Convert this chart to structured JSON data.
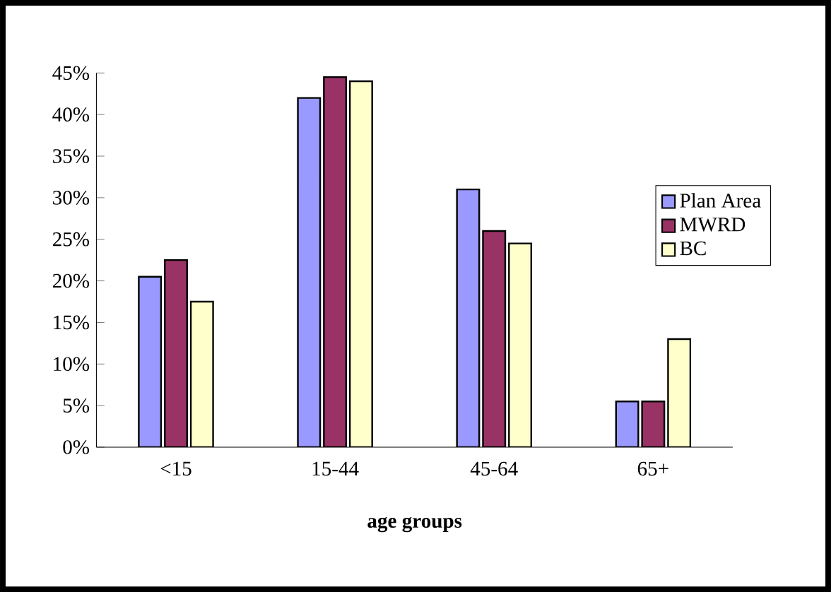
{
  "chart_data": {
    "type": "bar",
    "xlabel": "**age groups**",
    "categories": [
      "<15",
      "15-44",
      "45-64",
      "65+"
    ],
    "series": [
      {
        "name": "Plan Area",
        "color": "#9999ff",
        "values": [
          20.5,
          42,
          31,
          5.5
        ]
      },
      {
        "name": "MWRD",
        "color": "#993366",
        "values": [
          22.5,
          44.5,
          26,
          5.5
        ]
      },
      {
        "name": "BC",
        "color": "#ffffcc",
        "values": [
          17.5,
          44,
          24.5,
          13
        ]
      }
    ],
    "ylim": [
      0,
      45
    ],
    "yticks": [
      {
        "value": 0,
        "label": "0%"
      },
      {
        "value": 5,
        "label": "5%"
      },
      {
        "value": 10,
        "label": "10%"
      },
      {
        "value": 15,
        "label": "15%"
      },
      {
        "value": 20,
        "label": "20%"
      },
      {
        "value": 25,
        "label": "25%"
      },
      {
        "value": 30,
        "label": "30%"
      },
      {
        "value": 35,
        "label": "35%"
      },
      {
        "value": 40,
        "label": "40%"
      },
      {
        "value": 45,
        "label": "45%"
      }
    ],
    "grid": false,
    "legend": "right"
  }
}
